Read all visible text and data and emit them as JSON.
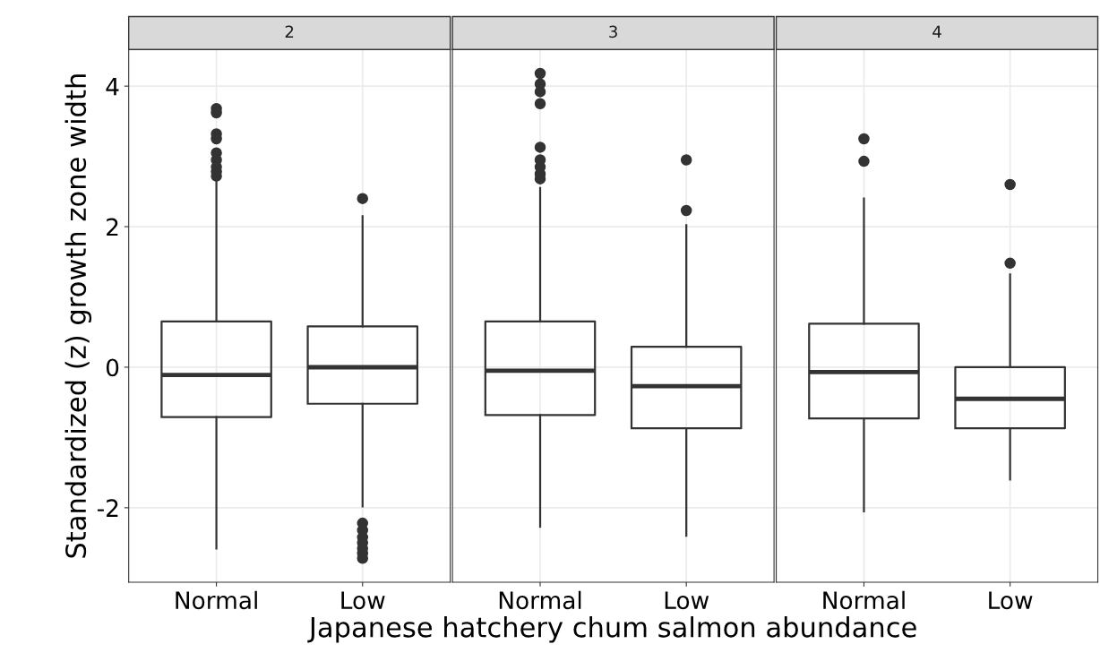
{
  "chart_data": [
    {
      "type": "box",
      "title": "2",
      "ylabel": "Standardized (z) growth zone width",
      "categories": [
        "Normal",
        "Low"
      ],
      "ylim": [
        -3.06,
        4.52
      ],
      "yticks": [
        -2,
        0,
        2,
        4
      ],
      "grid": true,
      "color": "#333333",
      "boxes": [
        {
          "low": -2.58,
          "q1": -0.71,
          "median": -0.11,
          "q3": 0.65,
          "high": 2.68,
          "outliers": [
            3.68,
            3.62,
            3.32,
            3.25,
            3.05,
            2.95,
            2.85,
            2.78,
            2.72
          ]
        },
        {
          "low": -1.98,
          "q1": -0.52,
          "median": 0.0,
          "q3": 0.58,
          "high": 2.15,
          "outliers": [
            2.4,
            -2.22,
            -2.32,
            -2.42,
            -2.5,
            -2.58,
            -2.65,
            -2.72
          ]
        }
      ]
    },
    {
      "type": "box",
      "title": "3",
      "xlabel": "Japanese hatchery chum salmon abundance",
      "categories": [
        "Normal",
        "Low"
      ],
      "ylim": [
        -3.06,
        4.52
      ],
      "yticks": [
        -2,
        0,
        2,
        4
      ],
      "tick_labels": "x",
      "grid": true,
      "color": "#333333",
      "boxes": [
        {
          "low": -2.27,
          "q1": -0.68,
          "median": -0.05,
          "q3": 0.65,
          "high": 2.55,
          "outliers": [
            4.18,
            4.03,
            3.92,
            3.75,
            3.13,
            2.95,
            2.85,
            2.75,
            2.68
          ]
        },
        {
          "low": -2.4,
          "q1": -0.87,
          "median": -0.27,
          "q3": 0.29,
          "high": 2.02,
          "outliers": [
            2.95,
            2.23
          ]
        }
      ]
    },
    {
      "type": "box",
      "title": "4",
      "categories": [
        "Normal",
        "Low"
      ],
      "ylim": [
        -3.06,
        4.52
      ],
      "yticks": [
        -2,
        0,
        2,
        4
      ],
      "tick_labels": "x",
      "grid": true,
      "color": "#333333",
      "boxes": [
        {
          "low": -2.05,
          "q1": -0.73,
          "median": -0.07,
          "q3": 0.62,
          "high": 2.4,
          "outliers": [
            3.25,
            2.93
          ]
        },
        {
          "low": -1.6,
          "q1": -0.87,
          "median": -0.45,
          "q3": 0.0,
          "high": 1.32,
          "outliers": [
            2.6,
            1.48
          ]
        }
      ]
    }
  ]
}
